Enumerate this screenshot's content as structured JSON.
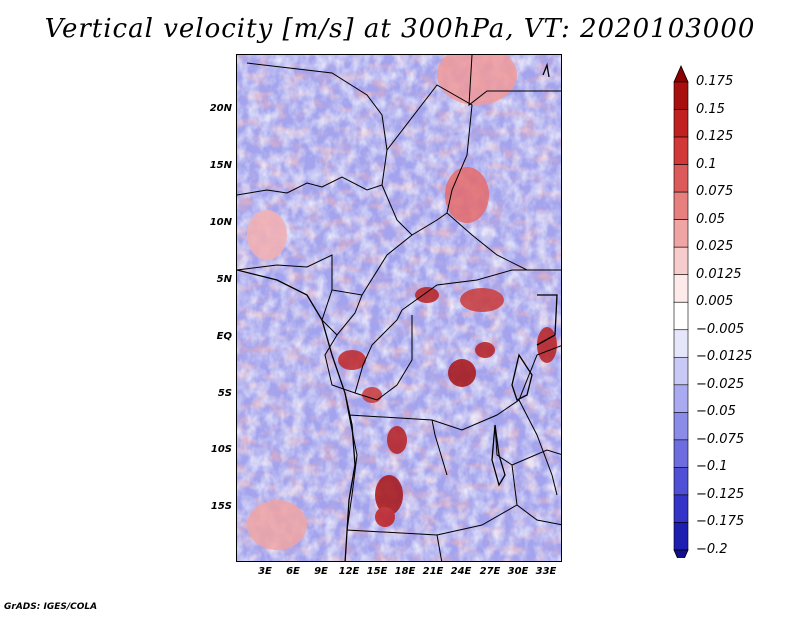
{
  "title": "Vertical velocity [m/s] at 300hPa, VT: 2020103000",
  "credit": "GrADS: IGES/COLA",
  "map": {
    "variable": "vertical velocity",
    "region": "Central Africa",
    "lat_ticks": [
      "20N",
      "15N",
      "10N",
      "5N",
      "EQ",
      "5S",
      "10S",
      "15S"
    ],
    "lon_ticks": [
      "3E",
      "6E",
      "9E",
      "12E",
      "15E",
      "18E",
      "21E",
      "24E",
      "27E",
      "30E",
      "33E"
    ]
  },
  "colorbar": {
    "labels": [
      "0.175",
      "0.15",
      "0.125",
      "0.1",
      "0.075",
      "0.05",
      "0.025",
      "0.0125",
      "0.005",
      "−0.005",
      "−0.0125",
      "−0.025",
      "−0.05",
      "−0.075",
      "−0.1",
      "−0.125",
      "−0.175",
      "−0.2"
    ],
    "colors": [
      "#8b0000",
      "#a80f0f",
      "#c02020",
      "#d23838",
      "#dd5a5a",
      "#e77f7f",
      "#f0a5a5",
      "#f7cccc",
      "#fdeaea",
      "#ffffff",
      "#e6e6fb",
      "#c9c9f5",
      "#aaaaf0",
      "#8b8be8",
      "#6d6de0",
      "#5050d6",
      "#3434c8",
      "#1e1eb0",
      "#10108f"
    ]
  }
}
